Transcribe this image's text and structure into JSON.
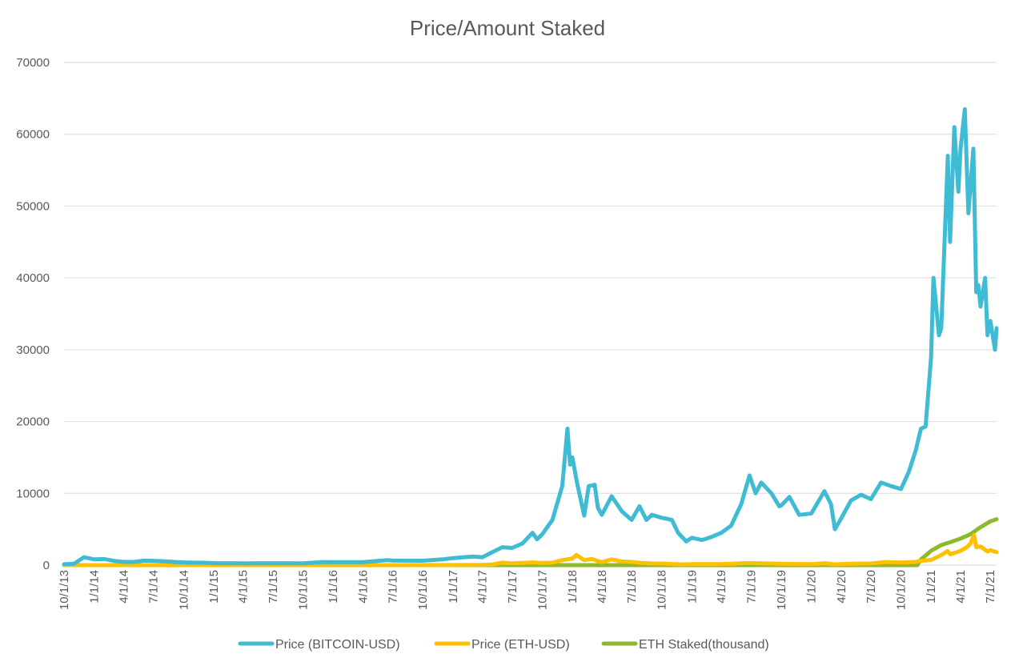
{
  "chart_data": {
    "type": "line",
    "title": "Price/Amount Staked",
    "xlabel": "",
    "ylabel": "",
    "ylim": [
      0,
      70000
    ],
    "y_ticks": [
      "0",
      "10000",
      "20000",
      "30000",
      "40000",
      "50000",
      "60000",
      "70000"
    ],
    "x_ticks": [
      "10/1/13",
      "1/1/14",
      "4/1/14",
      "7/1/14",
      "10/1/14",
      "1/1/15",
      "4/1/15",
      "7/1/15",
      "10/1/15",
      "1/1/16",
      "4/1/16",
      "7/1/16",
      "10/1/16",
      "1/1/17",
      "4/1/17",
      "7/1/17",
      "10/1/17",
      "1/1/18",
      "4/1/18",
      "7/1/18",
      "10/1/18",
      "1/1/19",
      "4/1/19",
      "7/1/19",
      "10/1/19",
      "1/1/20",
      "4/1/20",
      "7/1/20",
      "10/1/20",
      "1/1/21",
      "4/1/21",
      "7/1/21"
    ],
    "grid": "horizontal",
    "legend_position": "bottom",
    "series": [
      {
        "name": "Price (BITCOIN-USD)",
        "color": "#40BBD4",
        "points": [
          [
            "10/1/13",
            120
          ],
          [
            "11/1/13",
            200
          ],
          [
            "12/1/13",
            1100
          ],
          [
            "1/1/14",
            800
          ],
          [
            "2/1/14",
            850
          ],
          [
            "3/1/14",
            600
          ],
          [
            "4/1/14",
            450
          ],
          [
            "5/1/14",
            450
          ],
          [
            "6/1/14",
            620
          ],
          [
            "7/1/14",
            600
          ],
          [
            "8/1/14",
            550
          ],
          [
            "9/1/14",
            450
          ],
          [
            "10/1/14",
            380
          ],
          [
            "11/1/14",
            350
          ],
          [
            "12/1/14",
            330
          ],
          [
            "1/1/15",
            280
          ],
          [
            "4/1/15",
            240
          ],
          [
            "7/1/15",
            270
          ],
          [
            "10/1/15",
            250
          ],
          [
            "12/1/15",
            430
          ],
          [
            "1/1/16",
            420
          ],
          [
            "4/1/16",
            420
          ],
          [
            "6/15/16",
            700
          ],
          [
            "7/1/16",
            650
          ],
          [
            "10/1/16",
            610
          ],
          [
            "12/1/16",
            800
          ],
          [
            "1/1/17",
            980
          ],
          [
            "3/1/17",
            1200
          ],
          [
            "4/1/17",
            1100
          ],
          [
            "5/1/17",
            1800
          ],
          [
            "6/1/17",
            2500
          ],
          [
            "7/1/17",
            2400
          ],
          [
            "8/1/17",
            3000
          ],
          [
            "9/1/17",
            4500
          ],
          [
            "9/15/17",
            3600
          ],
          [
            "10/1/17",
            4300
          ],
          [
            "11/1/17",
            6300
          ],
          [
            "12/1/17",
            11000
          ],
          [
            "12/17/17",
            19000
          ],
          [
            "12/25/17",
            14000
          ],
          [
            "1/1/18",
            15000
          ],
          [
            "1/15/18",
            11500
          ],
          [
            "2/6/18",
            6900
          ],
          [
            "2/20/18",
            11000
          ],
          [
            "3/10/18",
            11200
          ],
          [
            "3/20/18",
            8000
          ],
          [
            "4/1/18",
            7000
          ],
          [
            "5/1/18",
            9600
          ],
          [
            "6/1/18",
            7500
          ],
          [
            "7/1/18",
            6300
          ],
          [
            "7/25/18",
            8200
          ],
          [
            "8/15/18",
            6300
          ],
          [
            "9/1/18",
            7000
          ],
          [
            "10/1/18",
            6600
          ],
          [
            "11/1/18",
            6300
          ],
          [
            "11/20/18",
            4500
          ],
          [
            "12/15/18",
            3300
          ],
          [
            "1/1/19",
            3800
          ],
          [
            "2/1/19",
            3500
          ],
          [
            "3/1/19",
            3900
          ],
          [
            "4/1/19",
            4500
          ],
          [
            "5/1/19",
            5500
          ],
          [
            "6/1/19",
            8500
          ],
          [
            "6/26/19",
            12500
          ],
          [
            "7/15/19",
            10000
          ],
          [
            "8/1/19",
            11500
          ],
          [
            "9/1/19",
            10000
          ],
          [
            "9/25/19",
            8200
          ],
          [
            "10/1/19",
            8300
          ],
          [
            "10/26/19",
            9500
          ],
          [
            "11/25/19",
            7000
          ],
          [
            "12/15/19",
            7100
          ],
          [
            "1/1/20",
            7200
          ],
          [
            "2/10/20",
            10300
          ],
          [
            "3/1/20",
            8500
          ],
          [
            "3/13/20",
            5000
          ],
          [
            "4/1/20",
            6500
          ],
          [
            "5/1/20",
            9000
          ],
          [
            "6/1/20",
            9800
          ],
          [
            "7/1/20",
            9200
          ],
          [
            "8/1/20",
            11500
          ],
          [
            "9/1/20",
            11000
          ],
          [
            "10/1/20",
            10600
          ],
          [
            "10/25/20",
            13000
          ],
          [
            "11/15/20",
            16000
          ],
          [
            "12/1/20",
            19000
          ],
          [
            "12/15/20",
            19300
          ],
          [
            "1/1/21",
            29000
          ],
          [
            "1/8/21",
            40000
          ],
          [
            "1/25/21",
            32000
          ],
          [
            "2/1/21",
            33000
          ],
          [
            "2/21/21",
            57000
          ],
          [
            "2/28/21",
            45000
          ],
          [
            "3/13/21",
            61000
          ],
          [
            "3/25/21",
            52000
          ],
          [
            "4/1/21",
            58000
          ],
          [
            "4/14/21",
            63500
          ],
          [
            "4/25/21",
            49000
          ],
          [
            "5/10/21",
            58000
          ],
          [
            "5/19/21",
            38000
          ],
          [
            "5/25/21",
            39000
          ],
          [
            "6/1/21",
            36000
          ],
          [
            "6/15/21",
            40000
          ],
          [
            "6/22/21",
            32000
          ],
          [
            "7/1/21",
            34000
          ],
          [
            "7/15/21",
            30000
          ],
          [
            "7/20/21",
            33000
          ]
        ]
      },
      {
        "name": "Price (ETH-USD)",
        "color": "#FFC000",
        "points": [
          [
            "10/1/13",
            0
          ],
          [
            "1/1/16",
            0
          ],
          [
            "1/1/17",
            10
          ],
          [
            "4/1/17",
            50
          ],
          [
            "5/1/17",
            90
          ],
          [
            "6/1/17",
            350
          ],
          [
            "7/1/17",
            250
          ],
          [
            "8/1/17",
            300
          ],
          [
            "9/1/17",
            380
          ],
          [
            "10/1/17",
            300
          ],
          [
            "11/1/17",
            350
          ],
          [
            "12/1/17",
            700
          ],
          [
            "1/1/18",
            900
          ],
          [
            "1/13/18",
            1400
          ],
          [
            "2/6/18",
            700
          ],
          [
            "3/1/18",
            850
          ],
          [
            "4/1/18",
            400
          ],
          [
            "5/1/18",
            800
          ],
          [
            "6/1/18",
            500
          ],
          [
            "7/1/18",
            450
          ],
          [
            "8/1/18",
            300
          ],
          [
            "9/1/18",
            230
          ],
          [
            "10/1/18",
            220
          ],
          [
            "12/1/18",
            100
          ],
          [
            "1/1/19",
            140
          ],
          [
            "4/1/19",
            150
          ],
          [
            "6/26/19",
            310
          ],
          [
            "7/1/19",
            290
          ],
          [
            "10/1/19",
            180
          ],
          [
            "1/1/20",
            130
          ],
          [
            "2/10/20",
            270
          ],
          [
            "3/13/20",
            110
          ],
          [
            "5/1/20",
            200
          ],
          [
            "7/1/20",
            230
          ],
          [
            "8/15/20",
            430
          ],
          [
            "10/1/20",
            360
          ],
          [
            "11/15/20",
            460
          ],
          [
            "12/1/20",
            600
          ],
          [
            "1/1/21",
            730
          ],
          [
            "2/1/21",
            1400
          ],
          [
            "2/20/21",
            1950
          ],
          [
            "3/1/21",
            1500
          ],
          [
            "4/1/21",
            2000
          ],
          [
            "4/20/21",
            2500
          ],
          [
            "5/1/21",
            3000
          ],
          [
            "5/12/21",
            4200
          ],
          [
            "5/19/21",
            2500
          ],
          [
            "6/1/21",
            2600
          ],
          [
            "6/22/21",
            1900
          ],
          [
            "7/1/21",
            2100
          ],
          [
            "7/20/21",
            1800
          ]
        ]
      },
      {
        "name": "ETH Staked(thousand)",
        "color": "#8DB92E",
        "points": [
          [
            "10/1/13",
            0
          ],
          [
            "11/20/20",
            0
          ],
          [
            "12/1/20",
            800
          ],
          [
            "1/1/21",
            2000
          ],
          [
            "2/1/21",
            2800
          ],
          [
            "3/1/21",
            3200
          ],
          [
            "4/1/21",
            3700
          ],
          [
            "5/1/21",
            4300
          ],
          [
            "6/1/21",
            5300
          ],
          [
            "7/1/21",
            6100
          ],
          [
            "7/20/21",
            6400
          ]
        ]
      }
    ]
  }
}
